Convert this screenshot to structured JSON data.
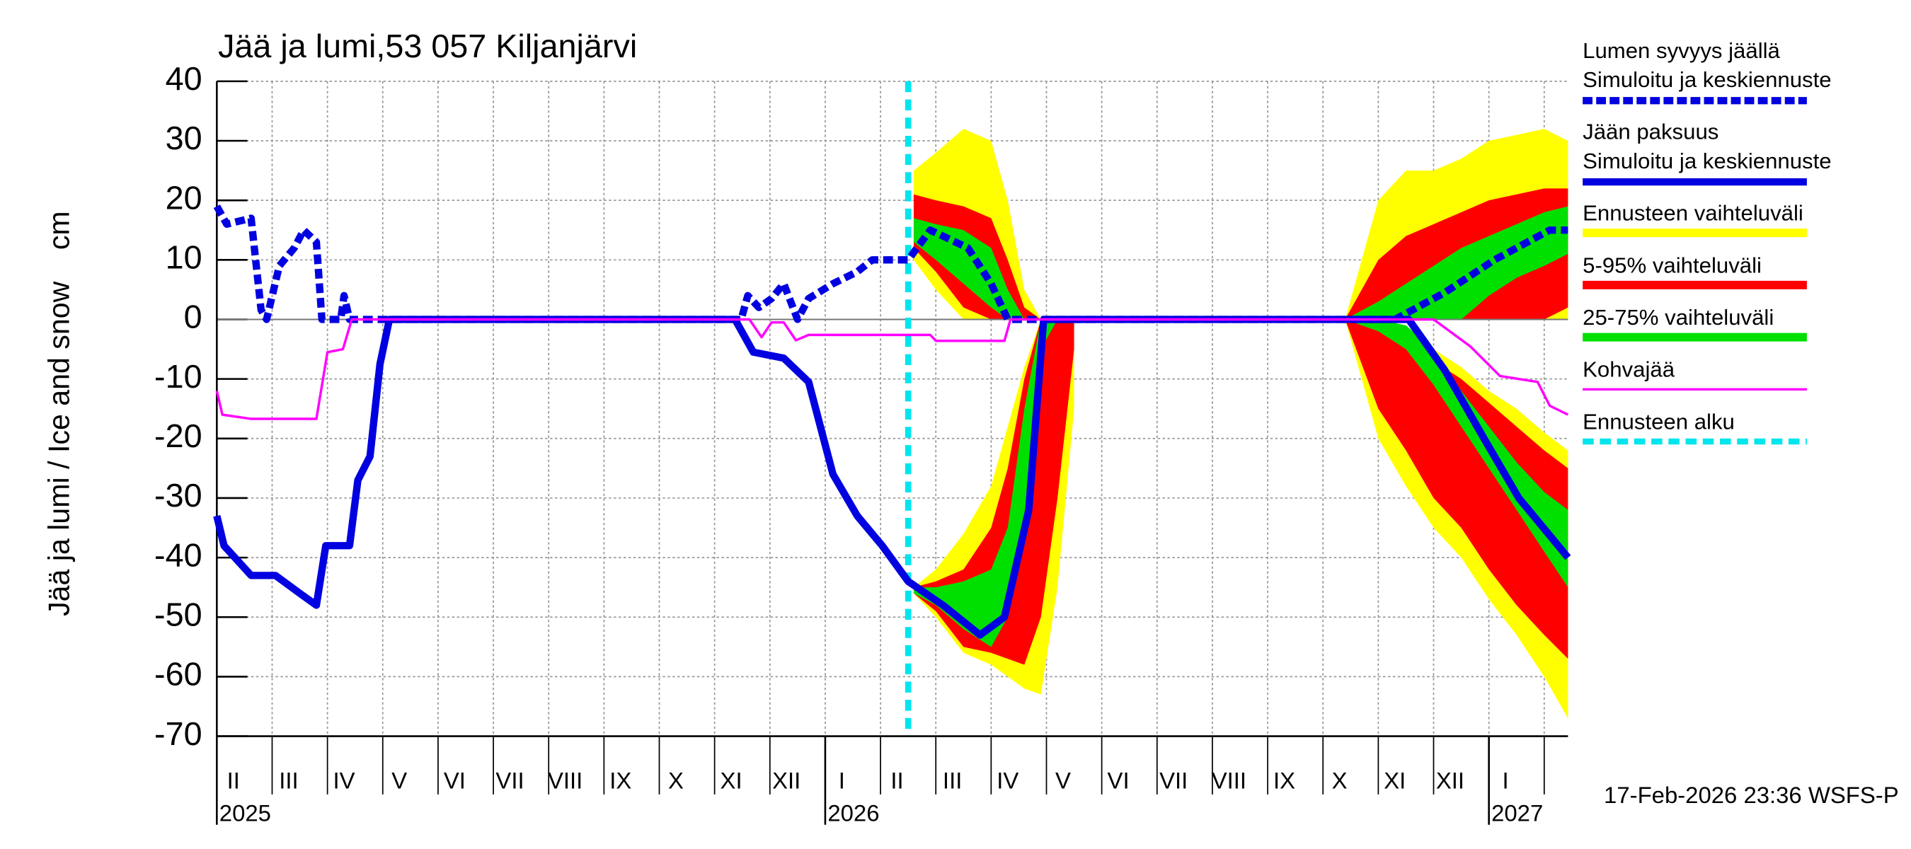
{
  "chart_data": {
    "type": "line",
    "title": "Jää ja lumi,53 057 Kiljanjärvi",
    "ylabel": "Jää ja lumi / Ice and snow",
    "yunit": "cm",
    "footer": "17-Feb-2026 23:36 WSFS-P",
    "ylim": [
      -70,
      40
    ],
    "yticks": [
      -70,
      -60,
      -50,
      -40,
      -30,
      -20,
      -10,
      0,
      10,
      20,
      30,
      40
    ],
    "xlim": [
      0,
      24.43
    ],
    "grid": true,
    "xgrid": [
      1,
      2,
      3,
      4,
      5,
      6,
      7,
      8,
      9,
      10,
      11,
      12,
      13,
      14,
      15,
      16,
      17,
      18,
      19,
      20,
      21,
      22,
      23,
      24
    ],
    "xticks": [
      {
        "value": 0.3,
        "label": "II"
      },
      {
        "value": 1.3,
        "label": "III"
      },
      {
        "value": 2.3,
        "label": "IV"
      },
      {
        "value": 3.3,
        "label": "V"
      },
      {
        "value": 4.3,
        "label": "VI"
      },
      {
        "value": 5.3,
        "label": "VII"
      },
      {
        "value": 6.3,
        "label": "VIII"
      },
      {
        "value": 7.3,
        "label": "IX"
      },
      {
        "value": 8.3,
        "label": "X"
      },
      {
        "value": 9.3,
        "label": "XI"
      },
      {
        "value": 10.3,
        "label": "XII"
      },
      {
        "value": 11.3,
        "label": "I"
      },
      {
        "value": 12.3,
        "label": "II"
      },
      {
        "value": 13.3,
        "label": "III"
      },
      {
        "value": 14.3,
        "label": "IV"
      },
      {
        "value": 15.3,
        "label": "V"
      },
      {
        "value": 16.3,
        "label": "VI"
      },
      {
        "value": 17.3,
        "label": "VII"
      },
      {
        "value": 18.3,
        "label": "VIII"
      },
      {
        "value": 19.3,
        "label": "IX"
      },
      {
        "value": 20.3,
        "label": "X"
      },
      {
        "value": 21.3,
        "label": "XI"
      },
      {
        "value": 22.3,
        "label": "XII"
      },
      {
        "value": 23.3,
        "label": "I"
      }
    ],
    "year_labels": [
      {
        "value": 0,
        "label": "2025"
      },
      {
        "value": 11,
        "label": "2026"
      },
      {
        "value": 23,
        "label": "2027"
      }
    ],
    "bands": {
      "x": [
        12.6,
        13.0,
        13.5,
        14.0,
        14.3,
        14.6,
        14.9,
        15.2,
        15.5,
        17,
        20.4,
        21,
        21.5,
        22,
        22.5,
        23,
        23.5,
        24,
        24.43
      ],
      "items": [
        {
          "name": "Ennusteen vaihteluväli",
          "color": "#ffff00",
          "snow_upper": [
            25,
            28,
            32,
            30,
            20,
            5,
            0,
            0,
            0,
            null,
            0,
            20,
            25,
            25,
            27,
            30,
            31,
            32,
            30
          ],
          "snow_lower": [
            10,
            5,
            0,
            0,
            0,
            0,
            0,
            0,
            0,
            null,
            0,
            0,
            0,
            0,
            0,
            0,
            0,
            0,
            0
          ],
          "ice_upper": [
            -45,
            -42,
            -36,
            -28,
            -18,
            -8,
            0,
            0,
            0,
            null,
            0,
            0,
            -2,
            -5,
            -8,
            -12,
            -15,
            -19,
            -22
          ],
          "ice_lower": [
            -46,
            -50,
            -56,
            -58,
            -60,
            -62,
            -63,
            -45,
            -15,
            null,
            0,
            -20,
            -28,
            -35,
            -40,
            -47,
            -53,
            -60,
            -67
          ]
        },
        {
          "name": "5-95% vaihteluväli",
          "color": "#ff0000",
          "snow_upper": [
            21,
            20,
            19,
            17,
            10,
            2,
            0,
            0,
            0,
            null,
            0,
            10,
            14,
            16,
            18,
            20,
            21,
            22,
            22
          ],
          "snow_lower": [
            12,
            8,
            2,
            0,
            0,
            0,
            0,
            0,
            0,
            null,
            0,
            0,
            0,
            0,
            0,
            0,
            0,
            0,
            2
          ],
          "ice_upper": [
            -45,
            -44,
            -42,
            -35,
            -25,
            -10,
            0,
            0,
            0,
            null,
            0,
            0,
            -3,
            -7,
            -10,
            -14,
            -18,
            -22,
            -25
          ],
          "ice_lower": [
            -46,
            -49,
            -55,
            -56,
            -57,
            -58,
            -50,
            -30,
            -5,
            null,
            0,
            -15,
            -22,
            -30,
            -35,
            -42,
            -48,
            -53,
            -57
          ]
        },
        {
          "name": "25-75% vaihteluväli",
          "color": "#00e000",
          "snow_upper": [
            17,
            16,
            15,
            12,
            5,
            0,
            0,
            0,
            0,
            null,
            0,
            3,
            6,
            9,
            12,
            14,
            16,
            18,
            19
          ],
          "snow_lower": [
            13,
            10,
            6,
            2,
            0,
            0,
            0,
            0,
            0,
            null,
            0,
            0,
            0,
            0,
            0,
            4,
            7,
            9,
            11
          ],
          "ice_upper": [
            -45,
            -45,
            -44,
            -42,
            -35,
            -15,
            0,
            0,
            0,
            null,
            0,
            0,
            -1,
            -5,
            -12,
            -18,
            -24,
            -29,
            -32
          ],
          "ice_lower": [
            -46,
            -48,
            -52,
            -55,
            -50,
            -35,
            -5,
            0,
            0,
            null,
            0,
            -2,
            -5,
            -11,
            -18,
            -25,
            -32,
            -39,
            -45
          ]
        }
      ]
    },
    "series": [
      {
        "name": "Lumen syvyys jäällä",
        "subname": "Simuloitu ja keskiennuste",
        "color": "#0000e0",
        "dashed": true,
        "x": [
          0,
          0.18,
          0.62,
          0.8,
          0.9,
          1.13,
          1.4,
          1.57,
          1.8,
          1.9,
          2.24,
          2.3,
          2.4,
          9.48,
          9.6,
          9.8,
          10.03,
          10.25,
          10.5,
          10.7,
          11.14,
          11.58,
          11.85,
          12.5,
          12.9,
          13.58,
          14.0,
          14.3,
          21.3,
          22.2,
          23.1,
          24.1,
          24.43
        ],
        "values": [
          19,
          16,
          17,
          1.6,
          0,
          9,
          12,
          15,
          13,
          0,
          0,
          4,
          0,
          0,
          4,
          2,
          3.5,
          6,
          0,
          3.5,
          6,
          8,
          10,
          10,
          15,
          12,
          6,
          0,
          0,
          4.5,
          10,
          15,
          15
        ]
      },
      {
        "name": "Jään paksuus",
        "subname": "Simuloitu ja keskiennuste",
        "color": "#0000e0",
        "dashed": false,
        "x": [
          0,
          0.13,
          0.62,
          1.06,
          1.5,
          1.8,
          1.97,
          2.4,
          2.55,
          2.77,
          2.95,
          3.12,
          9.37,
          9.7,
          10.25,
          10.7,
          11.14,
          11.58,
          12.03,
          12.5,
          13.13,
          13.8,
          14.24,
          14.68,
          14.95,
          21.55,
          22.2,
          22.88,
          23.54,
          24.43
        ],
        "values": [
          -33,
          -38,
          -43,
          -43,
          -46,
          -48,
          -38,
          -38,
          -27,
          -23,
          -7.5,
          0,
          0,
          -5.5,
          -6.5,
          -10.5,
          -26,
          -33,
          -38,
          -44,
          -48,
          -53,
          -50,
          -32,
          0,
          0,
          -8.5,
          -19.5,
          -30,
          -40
        ]
      },
      {
        "name": "Kohvajää",
        "color": "#ff00ff",
        "dashed": false,
        "x": [
          0,
          0.1,
          0.62,
          1.8,
          2.0,
          2.28,
          2.44,
          9.63,
          9.85,
          10.03,
          10.25,
          10.47,
          10.7,
          12.9,
          13.0,
          14.24,
          14.35,
          22.0,
          22.66,
          23.2,
          23.88,
          24.1,
          24.43
        ],
        "values": [
          -12,
          -16,
          -16.7,
          -16.7,
          -5.5,
          -5,
          0,
          0,
          -3,
          -0.5,
          -0.5,
          -3.5,
          -2.6,
          -2.6,
          -3.6,
          -3.6,
          0,
          0,
          -4.5,
          -9.5,
          -10.5,
          -14.5,
          -16
        ]
      }
    ],
    "forecast_start": {
      "name": "Ennusteen alku",
      "x": 12.5,
      "color": "#00e5ee"
    }
  }
}
